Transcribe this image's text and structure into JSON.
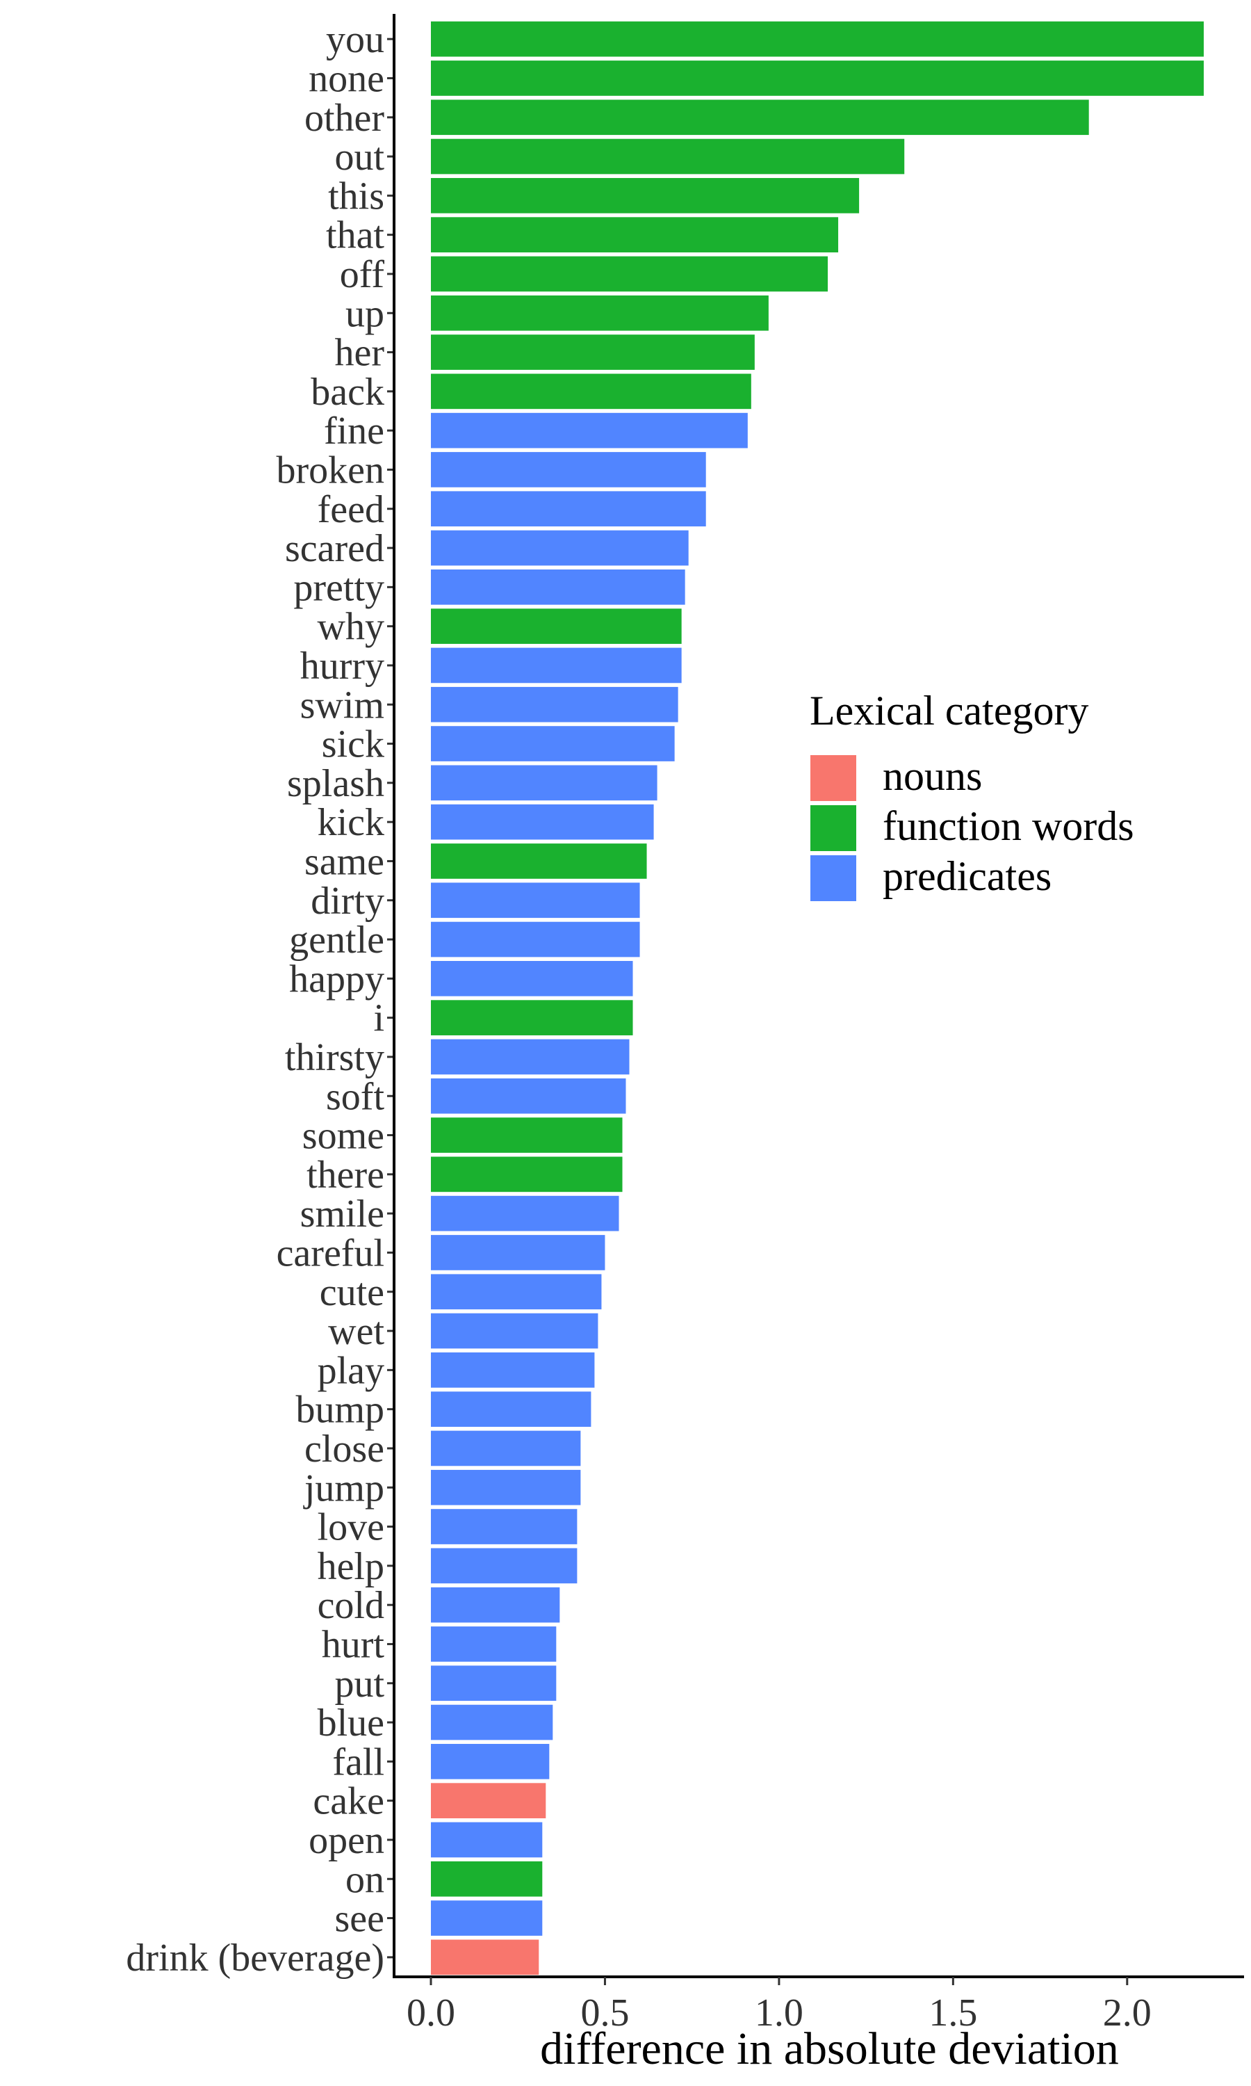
{
  "chart_data": {
    "type": "bar",
    "orientation": "horizontal",
    "title": "",
    "xlabel": "difference in absolute deviation",
    "ylabel": "",
    "xlim": [
      -0.05,
      2.32
    ],
    "xticks": [
      0.0,
      0.5,
      1.0,
      1.5,
      2.0
    ],
    "xtick_labels": [
      "0.0",
      "0.5",
      "1.0",
      "1.5",
      "2.0"
    ],
    "grid": false,
    "legend": {
      "title": "Lexical category",
      "placement": "right",
      "entries": [
        {
          "key": "nouns",
          "label": "nouns",
          "color": "#F8766D"
        },
        {
          "key": "function",
          "label": "function words",
          "color": "#1AB12F"
        },
        {
          "key": "predicates",
          "label": "predicates",
          "color": "#5185FF"
        }
      ]
    },
    "bars": [
      {
        "label": "you",
        "value": 2.22,
        "category": "function"
      },
      {
        "label": "none",
        "value": 2.22,
        "category": "function"
      },
      {
        "label": "other",
        "value": 1.89,
        "category": "function"
      },
      {
        "label": "out",
        "value": 1.36,
        "category": "function"
      },
      {
        "label": "this",
        "value": 1.23,
        "category": "function"
      },
      {
        "label": "that",
        "value": 1.17,
        "category": "function"
      },
      {
        "label": "off",
        "value": 1.14,
        "category": "function"
      },
      {
        "label": "up",
        "value": 0.97,
        "category": "function"
      },
      {
        "label": "her",
        "value": 0.93,
        "category": "function"
      },
      {
        "label": "back",
        "value": 0.92,
        "category": "function"
      },
      {
        "label": "fine",
        "value": 0.91,
        "category": "predicates"
      },
      {
        "label": "broken",
        "value": 0.79,
        "category": "predicates"
      },
      {
        "label": "feed",
        "value": 0.79,
        "category": "predicates"
      },
      {
        "label": "scared",
        "value": 0.74,
        "category": "predicates"
      },
      {
        "label": "pretty",
        "value": 0.73,
        "category": "predicates"
      },
      {
        "label": "why",
        "value": 0.72,
        "category": "function"
      },
      {
        "label": "hurry",
        "value": 0.72,
        "category": "predicates"
      },
      {
        "label": "swim",
        "value": 0.71,
        "category": "predicates"
      },
      {
        "label": "sick",
        "value": 0.7,
        "category": "predicates"
      },
      {
        "label": "splash",
        "value": 0.65,
        "category": "predicates"
      },
      {
        "label": "kick",
        "value": 0.64,
        "category": "predicates"
      },
      {
        "label": "same",
        "value": 0.62,
        "category": "function"
      },
      {
        "label": "dirty",
        "value": 0.6,
        "category": "predicates"
      },
      {
        "label": "gentle",
        "value": 0.6,
        "category": "predicates"
      },
      {
        "label": "happy",
        "value": 0.58,
        "category": "predicates"
      },
      {
        "label": "i",
        "value": 0.58,
        "category": "function"
      },
      {
        "label": "thirsty",
        "value": 0.57,
        "category": "predicates"
      },
      {
        "label": "soft",
        "value": 0.56,
        "category": "predicates"
      },
      {
        "label": "some",
        "value": 0.55,
        "category": "function"
      },
      {
        "label": "there",
        "value": 0.55,
        "category": "function"
      },
      {
        "label": "smile",
        "value": 0.54,
        "category": "predicates"
      },
      {
        "label": "careful",
        "value": 0.5,
        "category": "predicates"
      },
      {
        "label": "cute",
        "value": 0.49,
        "category": "predicates"
      },
      {
        "label": "wet",
        "value": 0.48,
        "category": "predicates"
      },
      {
        "label": "play",
        "value": 0.47,
        "category": "predicates"
      },
      {
        "label": "bump",
        "value": 0.46,
        "category": "predicates"
      },
      {
        "label": "close",
        "value": 0.43,
        "category": "predicates"
      },
      {
        "label": "jump",
        "value": 0.43,
        "category": "predicates"
      },
      {
        "label": "love",
        "value": 0.42,
        "category": "predicates"
      },
      {
        "label": "help",
        "value": 0.42,
        "category": "predicates"
      },
      {
        "label": "cold",
        "value": 0.37,
        "category": "predicates"
      },
      {
        "label": "hurt",
        "value": 0.36,
        "category": "predicates"
      },
      {
        "label": "put",
        "value": 0.36,
        "category": "predicates"
      },
      {
        "label": "blue",
        "value": 0.35,
        "category": "predicates"
      },
      {
        "label": "fall",
        "value": 0.34,
        "category": "predicates"
      },
      {
        "label": "cake",
        "value": 0.33,
        "category": "nouns"
      },
      {
        "label": "open",
        "value": 0.32,
        "category": "predicates"
      },
      {
        "label": "on",
        "value": 0.32,
        "category": "function"
      },
      {
        "label": "see",
        "value": 0.32,
        "category": "predicates"
      },
      {
        "label": "drink (beverage)",
        "value": 0.31,
        "category": "nouns"
      }
    ]
  }
}
